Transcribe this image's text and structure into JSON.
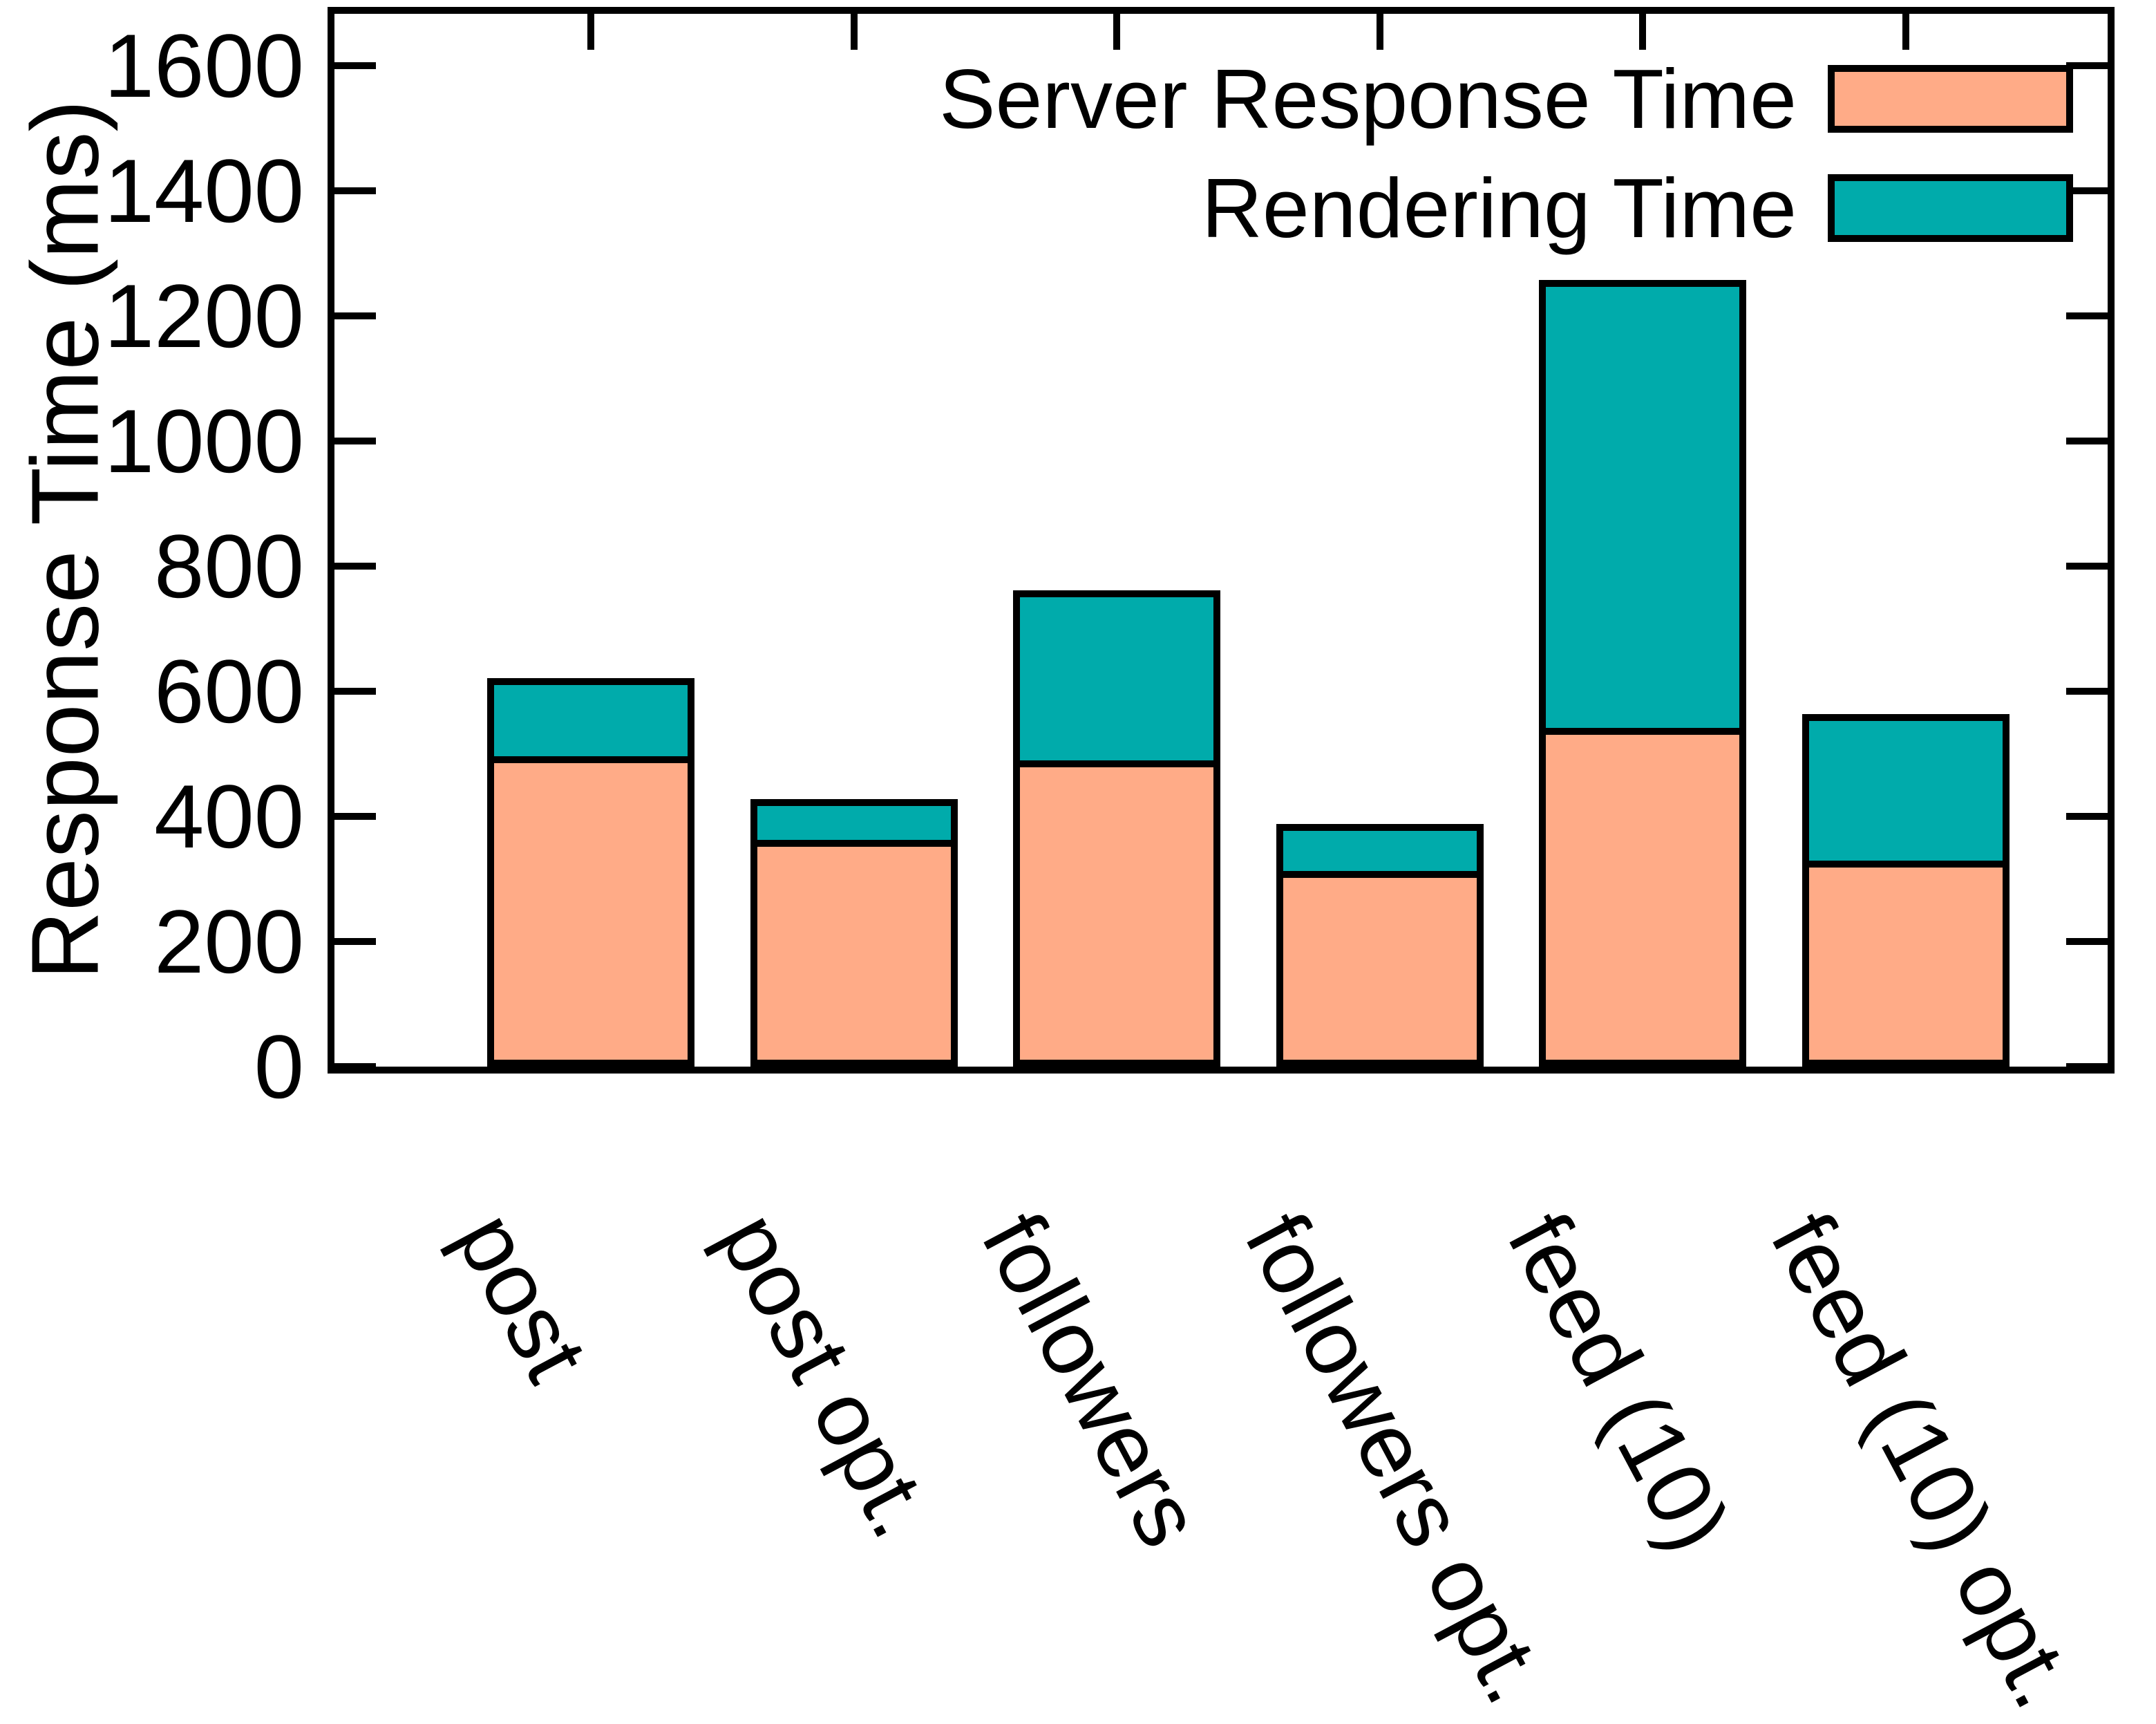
{
  "chart_data": {
    "type": "bar",
    "stacked": true,
    "title": "",
    "xlabel": "",
    "ylabel": "Response Time (ms)",
    "categories": [
      "post",
      "post opt.",
      "followers",
      "followers opt.",
      "feed (10)",
      "feed (10) opt."
    ],
    "series": [
      {
        "name": "Server Response Time",
        "color": "#FFAB87",
        "values": [
          485,
          351,
          478,
          302,
          530,
          318
        ]
      },
      {
        "name": "Rendering Time",
        "color": "#00ABAB",
        "values": [
          125,
          65,
          272,
          75,
          716,
          234
        ]
      }
    ],
    "totals": [
      610,
      416,
      750,
      377,
      1246,
      552
    ],
    "yticks": [
      0,
      200,
      400,
      600,
      800,
      1000,
      1200,
      1400,
      1600
    ],
    "ylim": [
      0,
      1705
    ],
    "grid": false,
    "legend_position": "top-right-inside",
    "axis_color": "#000000",
    "background_color": "#ffffff"
  }
}
